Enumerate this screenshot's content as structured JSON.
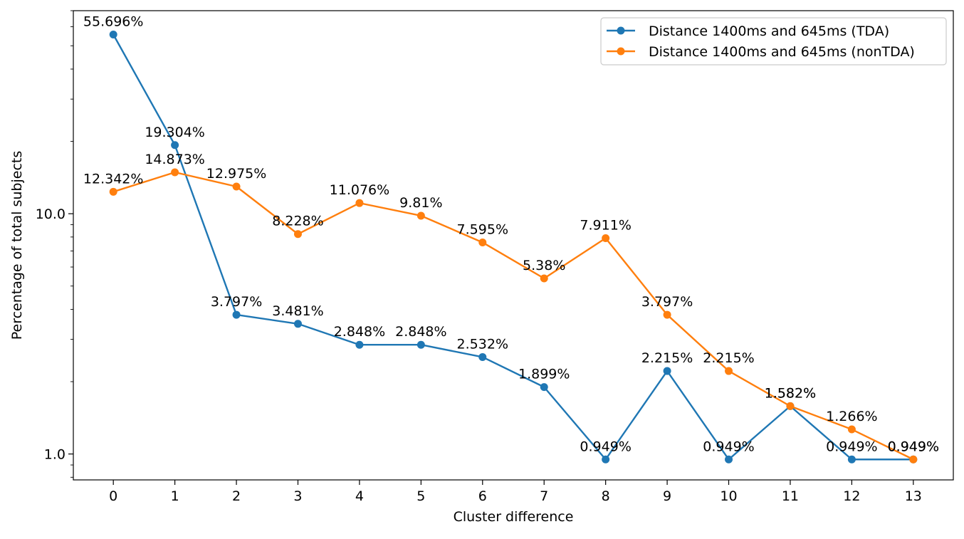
{
  "chart_data": {
    "type": "line",
    "title": "",
    "xlabel": "Cluster difference",
    "ylabel": "Percentage of total subjects",
    "yscale": "log",
    "ylim": [
      0.78,
      70
    ],
    "xlim": [
      -0.65,
      13.65
    ],
    "x": [
      0,
      1,
      2,
      3,
      4,
      5,
      6,
      7,
      8,
      9,
      10,
      11,
      12,
      13
    ],
    "x_tick_labels": [
      "0",
      "1",
      "2",
      "3",
      "4",
      "5",
      "6",
      "7",
      "8",
      "9",
      "10",
      "11",
      "12",
      "13"
    ],
    "y_tick_labels": [
      {
        "value": 1.0,
        "label": "1.0"
      },
      {
        "value": 10.0,
        "label": "10.0"
      }
    ],
    "grid": false,
    "legend_position": "top-right",
    "series": [
      {
        "name": "Distance 1400ms and 645ms (TDA)",
        "color": "#1f77b4",
        "marker": "circle",
        "values": [
          55.696,
          19.304,
          3.797,
          3.481,
          2.848,
          2.848,
          2.532,
          1.899,
          0.949,
          2.215,
          0.949,
          1.582,
          0.949,
          0.949
        ],
        "labels": [
          "55.696%",
          "19.304%",
          "3.797%",
          "3.481%",
          "2.848%",
          "2.848%",
          "2.532%",
          "1.899%",
          "0.949%",
          "2.215%",
          "0.949%",
          "1.582%",
          "0.949%",
          "0.949%"
        ]
      },
      {
        "name": "Distance 1400ms and 645ms (nonTDA)",
        "color": "#ff7f0e",
        "marker": "circle",
        "values": [
          12.342,
          14.873,
          12.975,
          8.228,
          11.076,
          9.81,
          7.595,
          5.38,
          7.911,
          3.797,
          2.215,
          1.582,
          1.266,
          0.949
        ],
        "labels": [
          "12.342%",
          "14.873%",
          "12.975%",
          "8.228%",
          "11.076%",
          "9.81%",
          "7.595%",
          "5.38%",
          "7.911%",
          "3.797%",
          "2.215%",
          "1.582%",
          "1.266%",
          "0.949%"
        ]
      }
    ]
  }
}
